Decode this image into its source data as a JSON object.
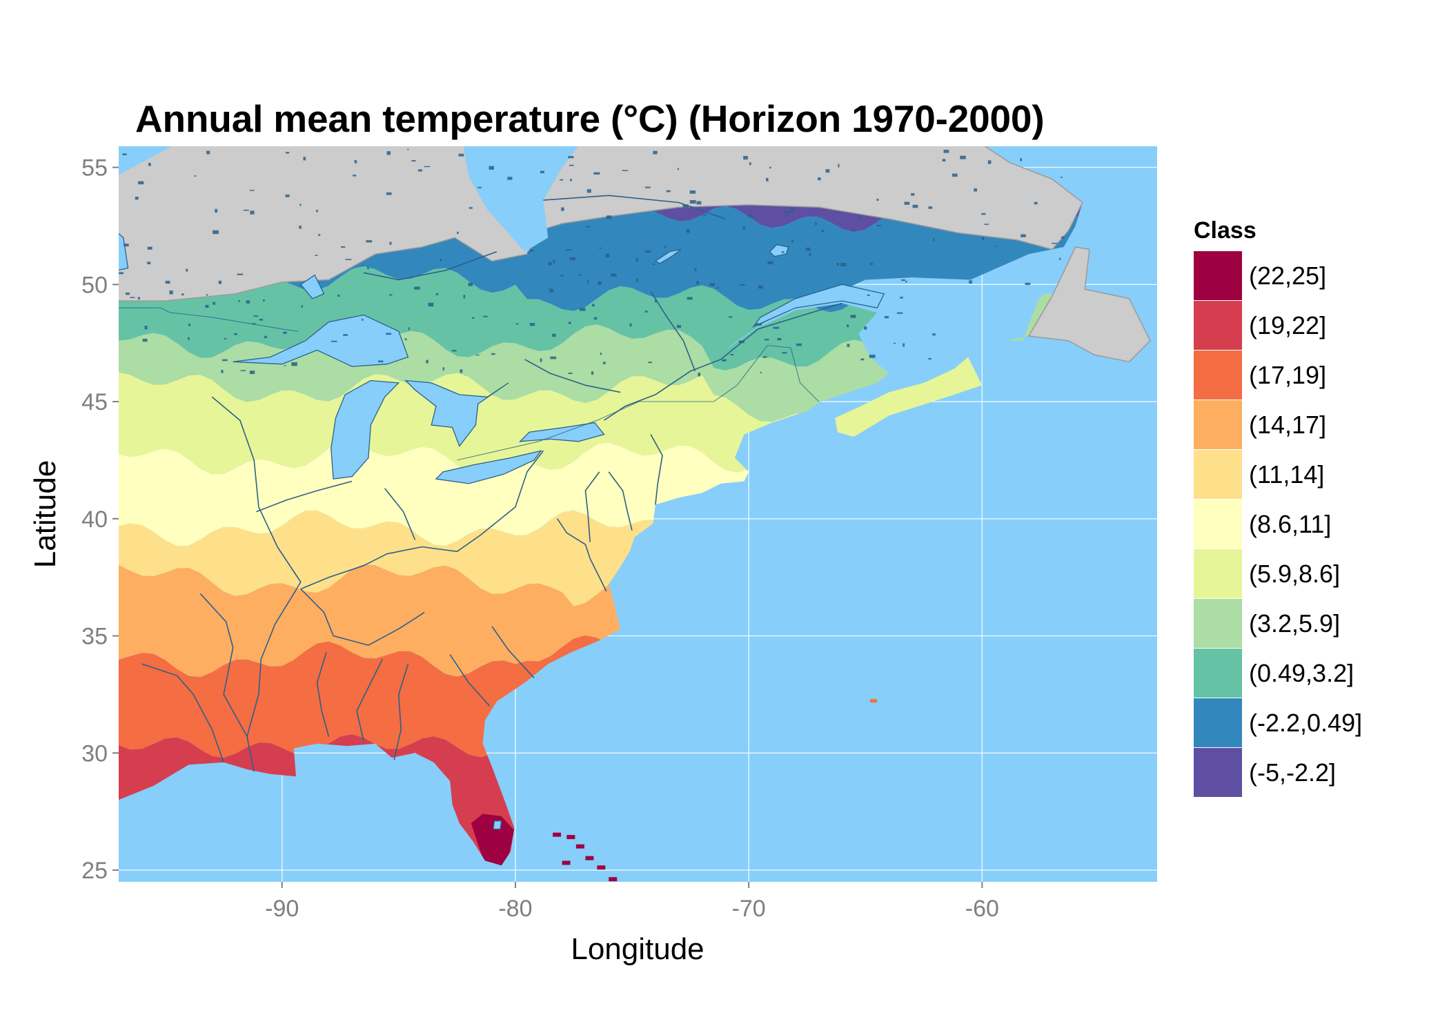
{
  "title": "Annual mean temperature (°C) (Horizon 1970-2000)",
  "axes": {
    "x_title": "Longitude",
    "y_title": "Latitude",
    "x_ticks": [
      -90,
      -80,
      -70,
      -60
    ],
    "y_ticks": [
      25,
      30,
      35,
      40,
      45,
      50,
      55
    ],
    "x_range": [
      -97,
      -52.5
    ],
    "y_range": [
      24.5,
      55.9
    ]
  },
  "colors": {
    "ocean": "#87cefa",
    "land_outside": "#cccccc",
    "gridline": "#ffffff",
    "lakes": "#87cefa",
    "rivers": "#2c5f8a"
  },
  "legend": {
    "title": "Class",
    "items": [
      {
        "label": "(22,25]",
        "color": "#9e0142"
      },
      {
        "label": "(19,22]",
        "color": "#d53e4f"
      },
      {
        "label": "(17,19]",
        "color": "#f46d43"
      },
      {
        "label": "(14,17]",
        "color": "#fdae61"
      },
      {
        "label": "(11,14]",
        "color": "#fee08b"
      },
      {
        "label": "(8.6,11]",
        "color": "#ffffbf"
      },
      {
        "label": "(5.9,8.6]",
        "color": "#e6f598"
      },
      {
        "label": "(3.2,5.9]",
        "color": "#abdda4"
      },
      {
        "label": "(0.49,3.2]",
        "color": "#66c2a5"
      },
      {
        "label": "(-2.2,0.49]",
        "color": "#3288bd"
      },
      {
        "label": "(-5,-2.2]",
        "color": "#5e4fa2"
      }
    ]
  }
}
